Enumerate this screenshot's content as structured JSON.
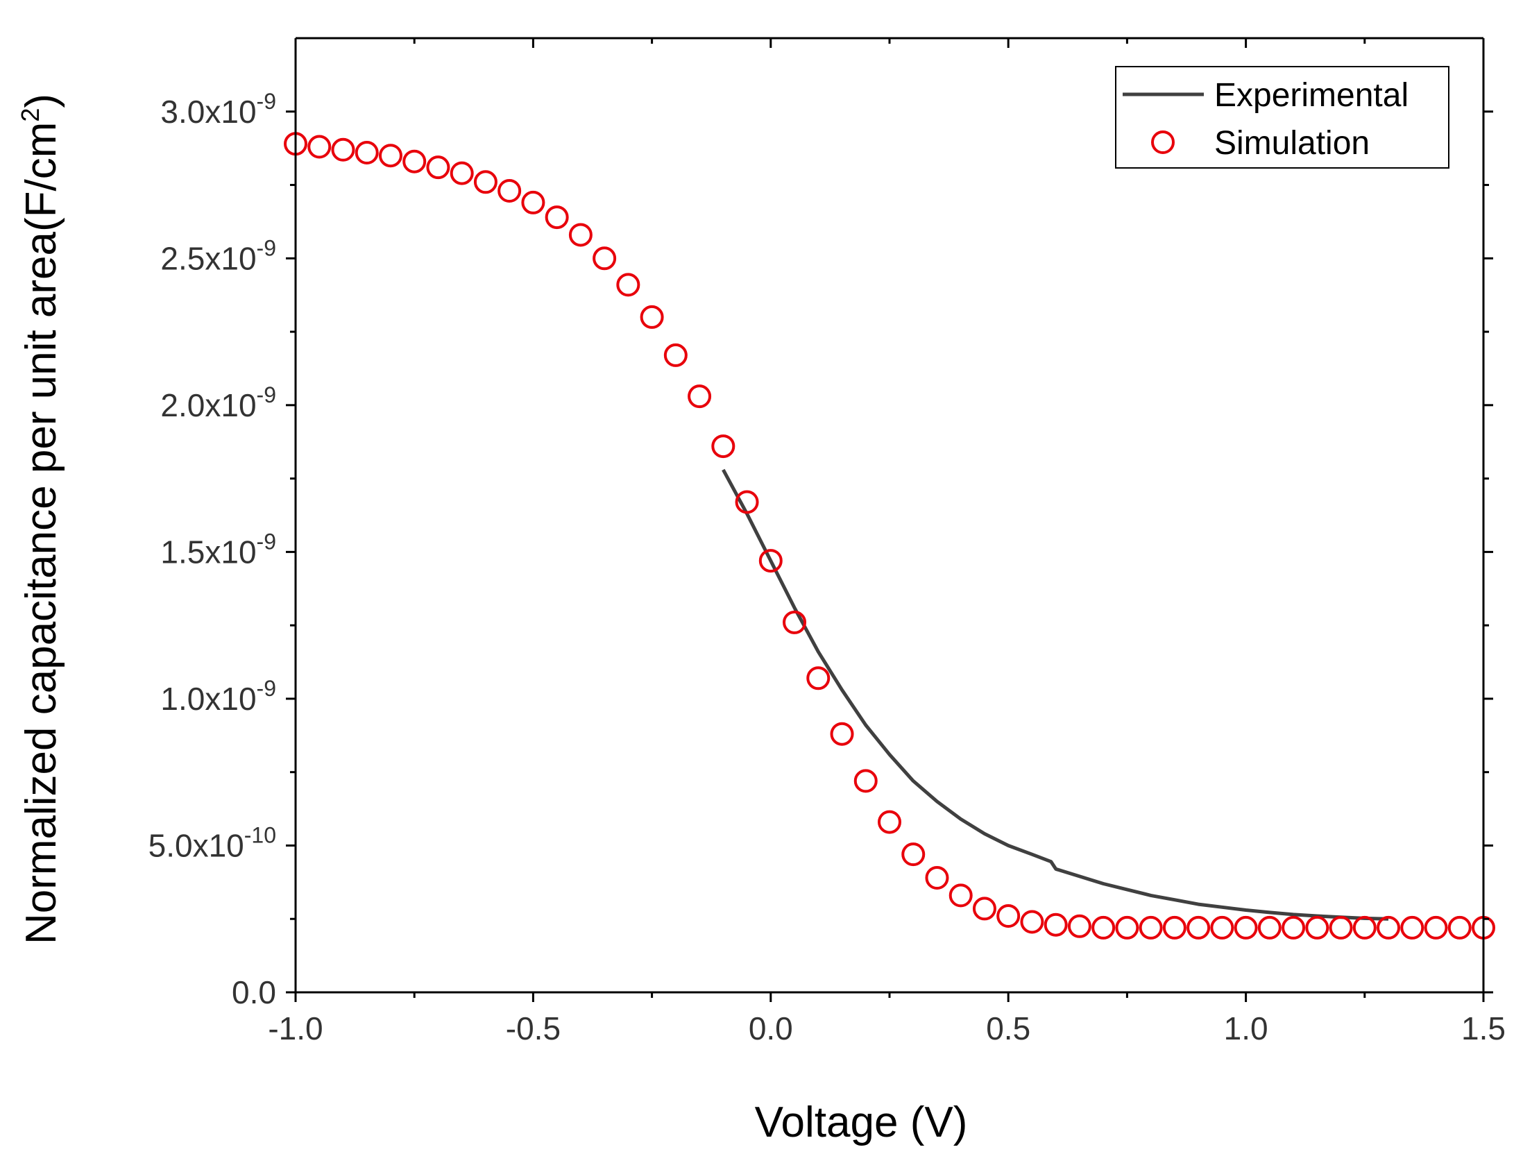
{
  "chart_data": {
    "type": "line",
    "title": "",
    "xlabel": "Voltage (V)",
    "ylabel_prefix": "Normalized capacitance per unit area(F/cm",
    "ylabel_sup": "2",
    "ylabel_suffix": ")",
    "xlim": [
      -1.0,
      1.5
    ],
    "ylim": [
      0,
      3.25e-09
    ],
    "x_ticks": [
      {
        "value": -1.0,
        "label": "-1.0"
      },
      {
        "value": -0.5,
        "label": "-0.5"
      },
      {
        "value": 0.0,
        "label": "0.0"
      },
      {
        "value": 0.5,
        "label": "0.5"
      },
      {
        "value": 1.0,
        "label": "1.0"
      },
      {
        "value": 1.5,
        "label": "1.5"
      }
    ],
    "y_ticks": [
      {
        "value": 0,
        "mantissa": "0.0",
        "exponent": ""
      },
      {
        "value": 5e-10,
        "mantissa": "5.0x10",
        "exponent": "-10"
      },
      {
        "value": 1e-09,
        "mantissa": "1.0x10",
        "exponent": "-9"
      },
      {
        "value": 1.5e-09,
        "mantissa": "1.5x10",
        "exponent": "-9"
      },
      {
        "value": 2e-09,
        "mantissa": "2.0x10",
        "exponent": "-9"
      },
      {
        "value": 2.5e-09,
        "mantissa": "2.5x10",
        "exponent": "-9"
      },
      {
        "value": 3e-09,
        "mantissa": "3.0x10",
        "exponent": "-9"
      }
    ],
    "legend_position": "top-right",
    "series": [
      {
        "name": "Experimental",
        "style": "line",
        "color": "#404040",
        "x": [
          -0.1,
          -0.05,
          0.0,
          0.05,
          0.1,
          0.15,
          0.2,
          0.25,
          0.3,
          0.35,
          0.4,
          0.45,
          0.5,
          0.55,
          0.59,
          0.6,
          0.65,
          0.7,
          0.75,
          0.8,
          0.85,
          0.9,
          0.95,
          1.0,
          1.05,
          1.1,
          1.15,
          1.2,
          1.25,
          1.3
        ],
        "y": [
          1.78e-09,
          1.63e-09,
          1.47e-09,
          1.31e-09,
          1.16e-09,
          1.03e-09,
          9.1e-10,
          8.1e-10,
          7.2e-10,
          6.5e-10,
          5.9e-10,
          5.4e-10,
          5e-10,
          4.7e-10,
          4.45e-10,
          4.2e-10,
          3.95e-10,
          3.7e-10,
          3.5e-10,
          3.3e-10,
          3.15e-10,
          3e-10,
          2.9e-10,
          2.8e-10,
          2.72e-10,
          2.65e-10,
          2.6e-10,
          2.56e-10,
          2.52e-10,
          2.5e-10
        ]
      },
      {
        "name": "Simulation",
        "style": "scatter",
        "marker": "open-circle",
        "color": "#e8000b",
        "x": [
          -1.0,
          -0.95,
          -0.9,
          -0.85,
          -0.8,
          -0.75,
          -0.7,
          -0.65,
          -0.6,
          -0.55,
          -0.5,
          -0.45,
          -0.4,
          -0.35,
          -0.3,
          -0.25,
          -0.2,
          -0.15,
          -0.1,
          -0.05,
          0.0,
          0.05,
          0.1,
          0.15,
          0.2,
          0.25,
          0.3,
          0.35,
          0.4,
          0.45,
          0.5,
          0.55,
          0.6,
          0.65,
          0.7,
          0.75,
          0.8,
          0.85,
          0.9,
          0.95,
          1.0,
          1.05,
          1.1,
          1.15,
          1.2,
          1.25,
          1.3,
          1.35,
          1.4,
          1.45,
          1.5
        ],
        "y": [
          2.89e-09,
          2.88e-09,
          2.87e-09,
          2.86e-09,
          2.85e-09,
          2.83e-09,
          2.81e-09,
          2.79e-09,
          2.76e-09,
          2.73e-09,
          2.69e-09,
          2.64e-09,
          2.58e-09,
          2.5e-09,
          2.41e-09,
          2.3e-09,
          2.17e-09,
          2.03e-09,
          1.86e-09,
          1.67e-09,
          1.47e-09,
          1.26e-09,
          1.07e-09,
          8.8e-10,
          7.2e-10,
          5.8e-10,
          4.7e-10,
          3.9e-10,
          3.3e-10,
          2.85e-10,
          2.6e-10,
          2.4e-10,
          2.3e-10,
          2.25e-10,
          2.2e-10,
          2.2e-10,
          2.2e-10,
          2.2e-10,
          2.2e-10,
          2.2e-10,
          2.2e-10,
          2.2e-10,
          2.2e-10,
          2.2e-10,
          2.2e-10,
          2.2e-10,
          2.2e-10,
          2.2e-10,
          2.2e-10,
          2.2e-10,
          2.2e-10
        ]
      }
    ]
  }
}
